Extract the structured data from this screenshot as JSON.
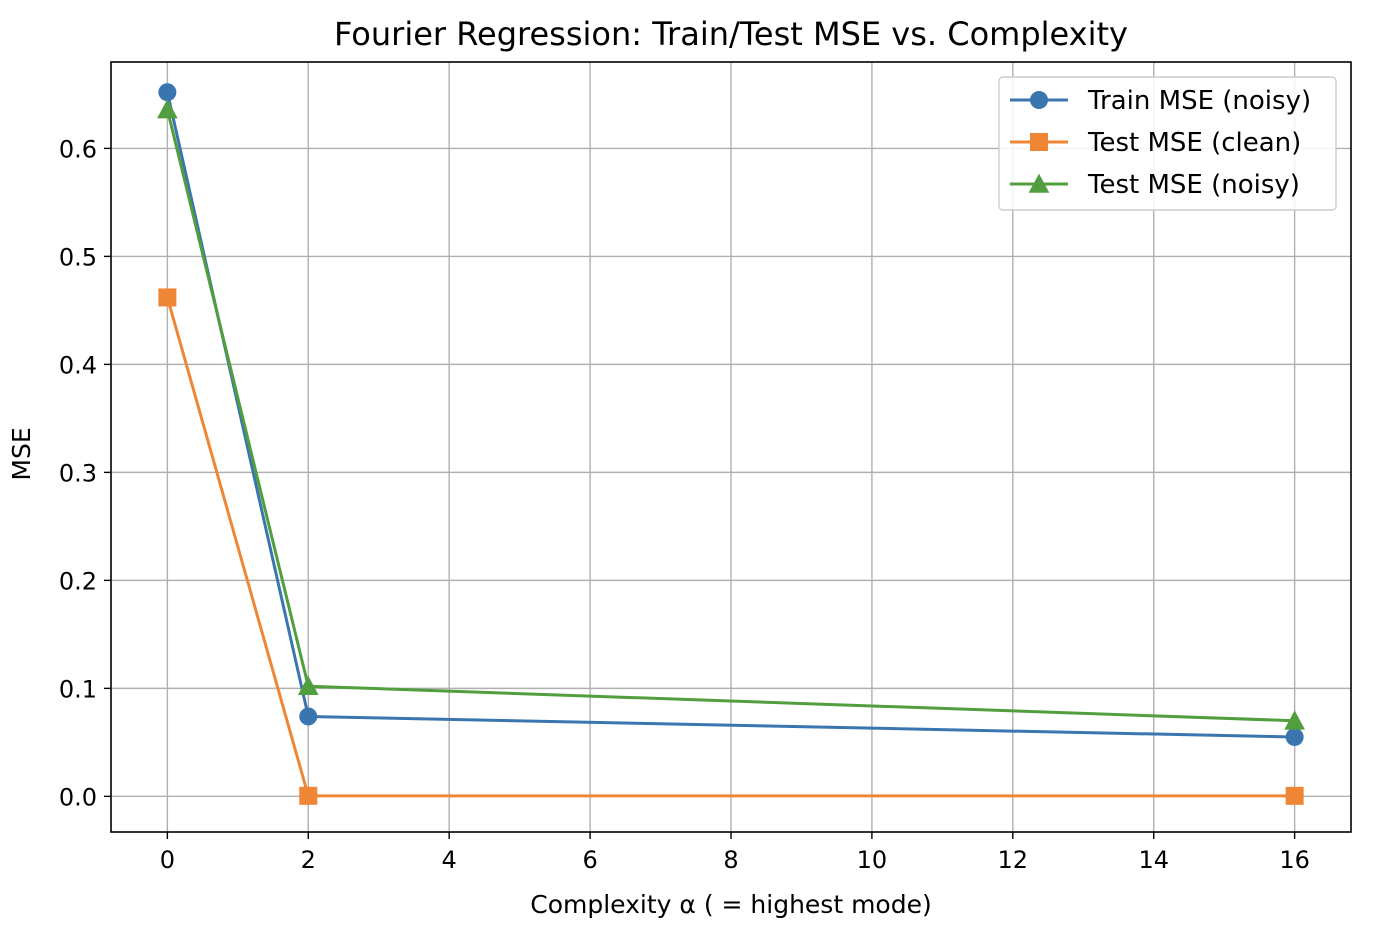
{
  "chart_data": {
    "type": "line",
    "title": "Fourier Regression: Train/Test MSE vs. Complexity",
    "xlabel": "Complexity α ( = highest mode)",
    "ylabel": "MSE",
    "x": [
      0,
      2,
      16
    ],
    "xlim": [
      -0.8,
      16.8
    ],
    "ylim": [
      -0.033,
      0.68
    ],
    "x_ticks": [
      "0",
      "2",
      "4",
      "6",
      "8",
      "10",
      "12",
      "14",
      "16"
    ],
    "y_ticks": [
      "0.0",
      "0.1",
      "0.2",
      "0.3",
      "0.4",
      "0.5",
      "0.6"
    ],
    "grid": true,
    "legend_position": "top-right",
    "series": [
      {
        "name": "Train MSE (noisy)",
        "values": [
          0.652,
          0.074,
          0.055
        ],
        "color": "#3b75af",
        "marker": "circle"
      },
      {
        "name": "Test MSE (clean)",
        "values": [
          0.462,
          0.0005,
          0.0005
        ],
        "color": "#ef8636",
        "marker": "square"
      },
      {
        "name": "Test MSE (noisy)",
        "values": [
          0.636,
          0.102,
          0.07
        ],
        "color": "#519e3e",
        "marker": "triangle"
      }
    ]
  }
}
